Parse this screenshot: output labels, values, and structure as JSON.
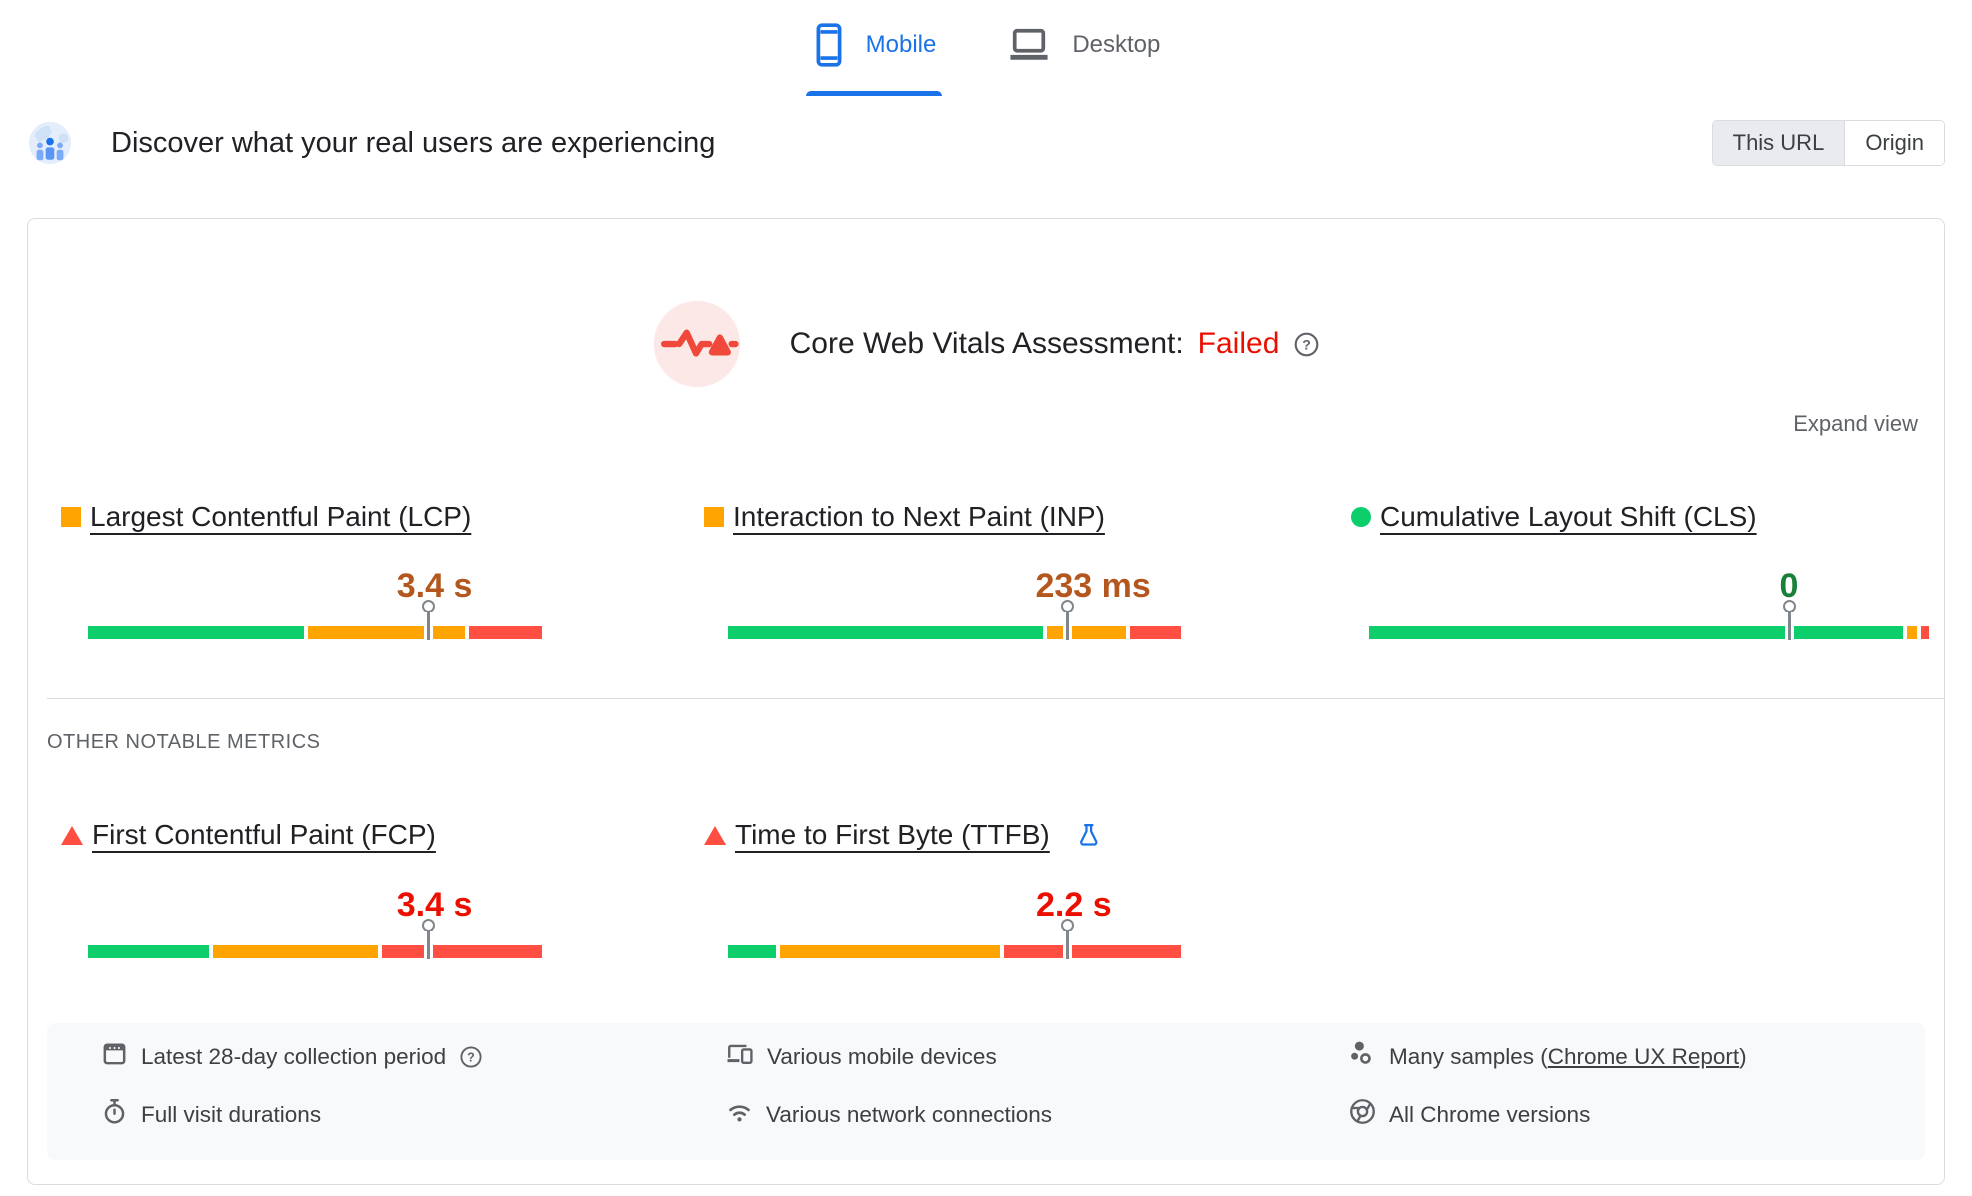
{
  "colors": {
    "good": "#0cce6b",
    "needs_improvement": "#ffa400",
    "poor": "#ff4e42",
    "accent_blue": "#1a73e8",
    "value_good_text": "#188038",
    "value_needs_improvement_text": "#b4571e",
    "value_poor_text": "#eb0f00",
    "failed_text": "#eb0f00"
  },
  "device_tabs": {
    "mobile_label": "Mobile",
    "desktop_label": "Desktop",
    "active": "Mobile"
  },
  "field_header": {
    "title": "Discover what your real users are experiencing",
    "toggle": {
      "this_url_label": "This URL",
      "origin_label": "Origin",
      "selected": "This URL"
    }
  },
  "assessment": {
    "heading": "Core Web Vitals Assessment:",
    "result": "Failed",
    "expand_label": "Expand view"
  },
  "metrics": {
    "lcp": {
      "label": "Largest Contentful Paint (LCP)",
      "value": "3.4 s",
      "rating": "needs-improvement",
      "segments": [
        47.5,
        34.5,
        16.0
      ],
      "p75_marker_pct": 75
    },
    "inp": {
      "label": "Interaction to Next Paint (INP)",
      "value": "233 ms",
      "rating": "needs-improvement",
      "segments": [
        69.6,
        17.3,
        11.3
      ],
      "p75_marker_pct": 75
    },
    "cls": {
      "label": "Cumulative Layout Shift (CLS)",
      "value": "0",
      "rating": "good",
      "segments": [
        96.0,
        1.8,
        1.4
      ],
      "p75_marker_pct": 75
    },
    "fcp": {
      "label": "First Contentful Paint (FCP)",
      "value": "3.4 s",
      "rating": "poor",
      "segments": [
        26.7,
        36.2,
        35.2
      ],
      "p75_marker_pct": 75
    },
    "ttfb": {
      "label": "Time to First Byte (TTFB)",
      "value": "2.2 s",
      "rating": "poor",
      "segments": [
        10.6,
        49.2,
        39.5
      ],
      "p75_marker_pct": 75
    }
  },
  "other_metrics_heading": "OTHER NOTABLE METRICS",
  "footer": {
    "collection_period": "Latest 28-day collection period",
    "visit_durations": "Full visit durations",
    "devices": "Various mobile devices",
    "network": "Various network connections",
    "samples_prefix": "Many samples (",
    "samples_link": "Chrome UX Report",
    "samples_suffix": ")",
    "chrome_versions": "All Chrome versions"
  }
}
